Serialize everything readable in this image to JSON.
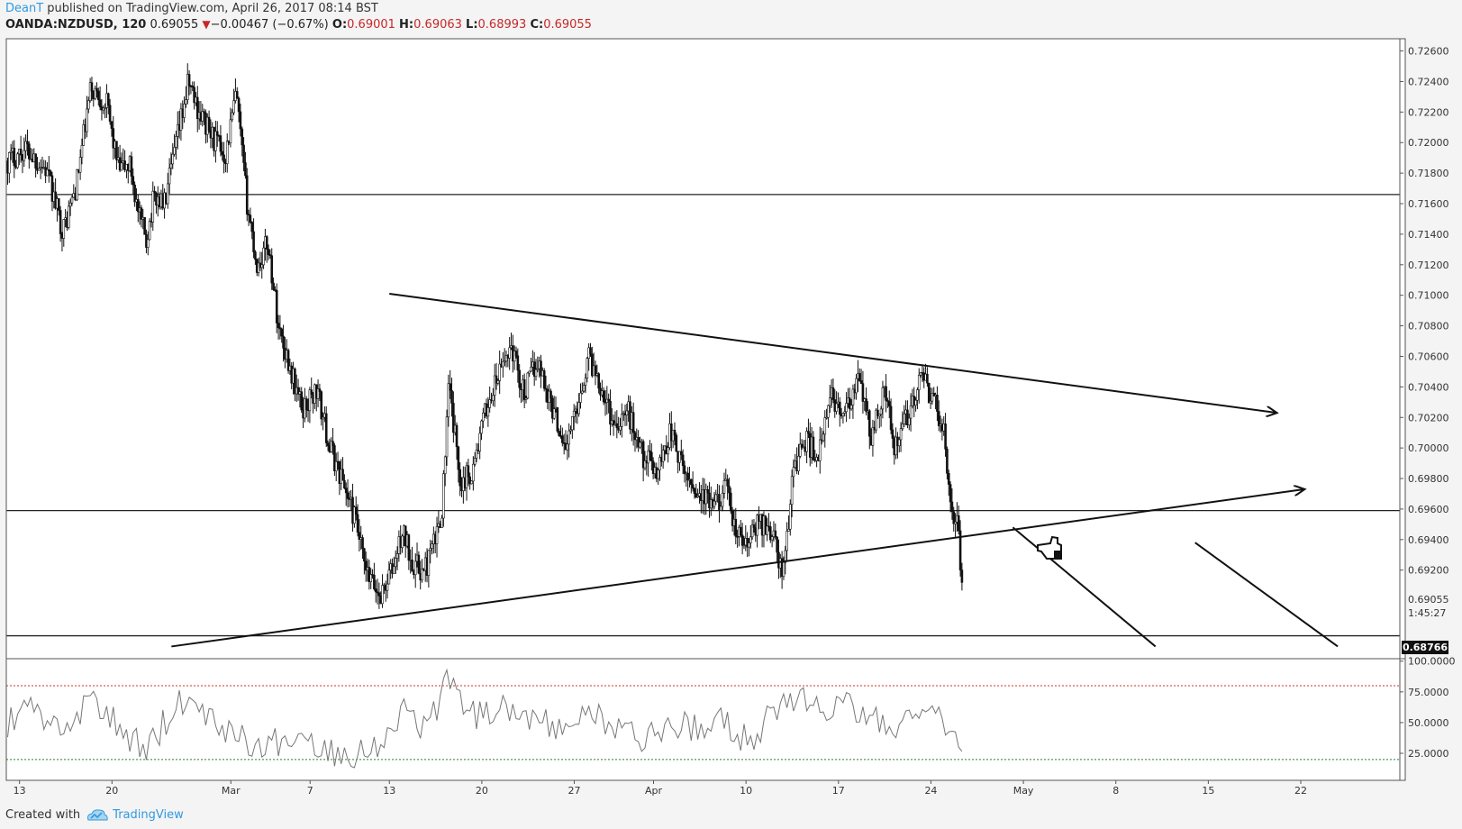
{
  "header": {
    "author": "DeanT",
    "published_text": "published on TradingView.com, April 26, 2017 08:14 BST"
  },
  "symbol_bar": {
    "symbol": "OANDA:NZDUSD, 120",
    "last": "0.69055",
    "change": "−0.00467 (−0.67%)",
    "open_label": "O:",
    "open": "0.69001",
    "high_label": "H:",
    "high": "0.69063",
    "low_label": "L:",
    "low": "0.68993",
    "close_label": "C:",
    "close": "0.69055"
  },
  "footer": {
    "created_with": "Created with",
    "brand": "TradingView"
  },
  "colors": {
    "accent": "#2f9ae0",
    "down": "#c62828",
    "rsi_upper": "#d32f2f",
    "rsi_lower": "#2e7d32"
  },
  "chart_data": [
    {
      "type": "candlestick",
      "title": "OANDA:NZDUSD, 120",
      "ylim": [
        0.6862,
        0.7268
      ],
      "y_ticks": [
        "0.72600",
        "0.72400",
        "0.72200",
        "0.72000",
        "0.71800",
        "0.71600",
        "0.71400",
        "0.71200",
        "0.71000",
        "0.70800",
        "0.70600",
        "0.70400",
        "0.70200",
        "0.70000",
        "0.69800",
        "0.69600",
        "0.69400",
        "0.69200"
      ],
      "y_tick_values": [
        0.726,
        0.724,
        0.722,
        0.72,
        0.718,
        0.716,
        0.714,
        0.712,
        0.71,
        0.708,
        0.706,
        0.704,
        0.702,
        0.7,
        0.698,
        0.696,
        0.694,
        0.692
      ],
      "x_ticks": [
        "13",
        "20",
        "Mar",
        "7",
        "13",
        "20",
        "27",
        "Apr",
        "10",
        "17",
        "24",
        "May",
        "8",
        "15",
        "22"
      ],
      "x_tick_days": [
        0,
        7,
        16,
        22,
        28,
        35,
        42,
        48,
        55,
        62,
        69,
        76,
        83,
        90,
        97
      ],
      "x_range_days": [
        -1.0,
        104.5
      ],
      "x_note": "days since Feb 13, 2017",
      "current_price_label": "0.69055",
      "countdown": "1:45:27",
      "marked_level": "0.68766",
      "horizontal_lines": [
        0.7166,
        0.6959,
        0.6877
      ],
      "price_path": [
        {
          "day": -0.9,
          "price": 0.7188
        },
        {
          "day": 0.5,
          "price": 0.7196
        },
        {
          "day": 2.0,
          "price": 0.7182
        },
        {
          "day": 3.3,
          "price": 0.7142
        },
        {
          "day": 4.3,
          "price": 0.7172
        },
        {
          "day": 5.4,
          "price": 0.7236
        },
        {
          "day": 6.6,
          "price": 0.7225
        },
        {
          "day": 7.5,
          "price": 0.7182
        },
        {
          "day": 8.4,
          "price": 0.7185
        },
        {
          "day": 9.0,
          "price": 0.7152
        },
        {
          "day": 9.6,
          "price": 0.7137
        },
        {
          "day": 10.2,
          "price": 0.7165
        },
        {
          "day": 11.0,
          "price": 0.716
        },
        {
          "day": 12.0,
          "price": 0.7205
        },
        {
          "day": 12.8,
          "price": 0.724
        },
        {
          "day": 13.5,
          "price": 0.7222
        },
        {
          "day": 14.5,
          "price": 0.7205
        },
        {
          "day": 15.6,
          "price": 0.7192
        },
        {
          "day": 16.4,
          "price": 0.7232
        },
        {
          "day": 17.2,
          "price": 0.7162
        },
        {
          "day": 18.0,
          "price": 0.7118
        },
        {
          "day": 18.8,
          "price": 0.7135
        },
        {
          "day": 19.6,
          "price": 0.708
        },
        {
          "day": 20.5,
          "price": 0.7052
        },
        {
          "day": 21.4,
          "price": 0.7025
        },
        {
          "day": 22.5,
          "price": 0.7038
        },
        {
          "day": 23.5,
          "price": 0.7
        },
        {
          "day": 24.5,
          "price": 0.6978
        },
        {
          "day": 25.5,
          "price": 0.695
        },
        {
          "day": 26.2,
          "price": 0.6918
        },
        {
          "day": 27.3,
          "price": 0.6903
        },
        {
          "day": 28.3,
          "price": 0.6922
        },
        {
          "day": 29.0,
          "price": 0.6945
        },
        {
          "day": 29.8,
          "price": 0.6925
        },
        {
          "day": 30.6,
          "price": 0.6918
        },
        {
          "day": 31.5,
          "price": 0.694
        },
        {
          "day": 32.0,
          "price": 0.6962
        },
        {
          "day": 32.5,
          "price": 0.704
        },
        {
          "day": 33.4,
          "price": 0.6978
        },
        {
          "day": 34.3,
          "price": 0.6985
        },
        {
          "day": 35.3,
          "price": 0.7025
        },
        {
          "day": 36.3,
          "price": 0.7048
        },
        {
          "day": 37.2,
          "price": 0.7068
        },
        {
          "day": 38.2,
          "price": 0.7035
        },
        {
          "day": 39.2,
          "price": 0.7058
        },
        {
          "day": 40.2,
          "price": 0.703
        },
        {
          "day": 41.4,
          "price": 0.7
        },
        {
          "day": 42.2,
          "price": 0.7028
        },
        {
          "day": 43.1,
          "price": 0.706
        },
        {
          "day": 44.0,
          "price": 0.7042
        },
        {
          "day": 45.0,
          "price": 0.7015
        },
        {
          "day": 46.0,
          "price": 0.7025
        },
        {
          "day": 47.2,
          "price": 0.6995
        },
        {
          "day": 48.3,
          "price": 0.6985
        },
        {
          "day": 49.3,
          "price": 0.7012
        },
        {
          "day": 50.2,
          "price": 0.6985
        },
        {
          "day": 51.5,
          "price": 0.697
        },
        {
          "day": 52.6,
          "price": 0.696
        },
        {
          "day": 53.4,
          "price": 0.6975
        },
        {
          "day": 54.2,
          "price": 0.6945
        },
        {
          "day": 55.0,
          "price": 0.6935
        },
        {
          "day": 56.0,
          "price": 0.6952
        },
        {
          "day": 57.0,
          "price": 0.6945
        },
        {
          "day": 57.8,
          "price": 0.6915
        },
        {
          "day": 58.6,
          "price": 0.6988
        },
        {
          "day": 59.5,
          "price": 0.7005
        },
        {
          "day": 60.5,
          "price": 0.6995
        },
        {
          "day": 61.5,
          "price": 0.7035
        },
        {
          "day": 62.5,
          "price": 0.702
        },
        {
          "day": 63.6,
          "price": 0.7045
        },
        {
          "day": 64.5,
          "price": 0.7005
        },
        {
          "day": 65.4,
          "price": 0.704
        },
        {
          "day": 66.3,
          "price": 0.7
        },
        {
          "day": 67.4,
          "price": 0.7025
        },
        {
          "day": 68.3,
          "price": 0.7045
        },
        {
          "day": 69.3,
          "price": 0.703
        },
        {
          "day": 70.0,
          "price": 0.7008
        },
        {
          "day": 70.5,
          "price": 0.6965
        },
        {
          "day": 71.0,
          "price": 0.695
        },
        {
          "day": 71.4,
          "price": 0.6905
        }
      ],
      "trendlines": [
        {
          "name": "upper-trendline",
          "from": {
            "day": 28.0,
            "price": 0.7101
          },
          "to": {
            "day": 95.2,
            "price": 0.7023
          },
          "arrow": true
        },
        {
          "name": "lower-trendline",
          "from": {
            "day": 11.5,
            "price": 0.687
          },
          "to": {
            "day": 97.3,
            "price": 0.6973
          },
          "arrow": true
        },
        {
          "name": "projection-line-1",
          "from": {
            "day": 75.2,
            "price": 0.6948
          },
          "to": {
            "day": 86.0,
            "price": 0.687
          },
          "arrow": false
        },
        {
          "name": "projection-line-2",
          "from": {
            "day": 89.0,
            "price": 0.6938
          },
          "to": {
            "day": 99.8,
            "price": 0.687
          },
          "arrow": false
        }
      ]
    },
    {
      "type": "line",
      "title": "RSI",
      "ylim": [
        3.0,
        102.0
      ],
      "y_ticks": [
        "100.0000",
        "75.0000",
        "50.0000",
        "25.0000"
      ],
      "y_tick_values": [
        100,
        75,
        50,
        25
      ],
      "upper_band": 80,
      "lower_band": 20,
      "anchors": [
        {
          "day": -0.9,
          "value": 48
        },
        {
          "day": 1.0,
          "value": 62
        },
        {
          "day": 3.5,
          "value": 40
        },
        {
          "day": 5.5,
          "value": 70
        },
        {
          "day": 7.5,
          "value": 45
        },
        {
          "day": 9.5,
          "value": 28
        },
        {
          "day": 12.5,
          "value": 72
        },
        {
          "day": 14.5,
          "value": 55
        },
        {
          "day": 16.5,
          "value": 40
        },
        {
          "day": 18.5,
          "value": 30
        },
        {
          "day": 21.0,
          "value": 40
        },
        {
          "day": 23.5,
          "value": 28
        },
        {
          "day": 25.5,
          "value": 25
        },
        {
          "day": 27.0,
          "value": 32
        },
        {
          "day": 29.0,
          "value": 60
        },
        {
          "day": 31.0,
          "value": 45
        },
        {
          "day": 32.5,
          "value": 88
        },
        {
          "day": 34.5,
          "value": 55
        },
        {
          "day": 36.5,
          "value": 65
        },
        {
          "day": 39.0,
          "value": 55
        },
        {
          "day": 41.0,
          "value": 40
        },
        {
          "day": 42.7,
          "value": 62
        },
        {
          "day": 45.0,
          "value": 45
        },
        {
          "day": 47.5,
          "value": 38
        },
        {
          "day": 49.5,
          "value": 50
        },
        {
          "day": 51.5,
          "value": 42
        },
        {
          "day": 53.5,
          "value": 52
        },
        {
          "day": 55.0,
          "value": 35
        },
        {
          "day": 57.0,
          "value": 55
        },
        {
          "day": 58.5,
          "value": 72
        },
        {
          "day": 60.5,
          "value": 60
        },
        {
          "day": 62.0,
          "value": 68
        },
        {
          "day": 64.0,
          "value": 55
        },
        {
          "day": 66.0,
          "value": 50
        },
        {
          "day": 68.0,
          "value": 50
        },
        {
          "day": 69.5,
          "value": 58
        },
        {
          "day": 70.5,
          "value": 40
        },
        {
          "day": 71.4,
          "value": 22
        }
      ]
    }
  ]
}
